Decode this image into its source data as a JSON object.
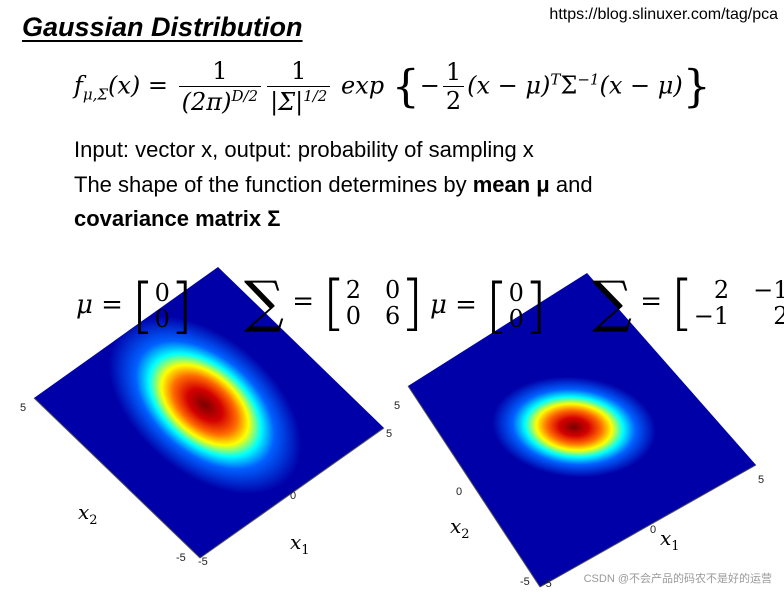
{
  "header": {
    "title": "Gaussian Distribution",
    "url": "https://blog.slinuxer.com/tag/pca"
  },
  "formula": {
    "lhs": "f",
    "lhs_sub": "μ,Σ",
    "lhs_arg": "(x) =",
    "frac1_num": "1",
    "frac1_den": "(2π)",
    "frac1_den_sup": "D/2",
    "frac2_num": "1",
    "frac2_den": "|Σ|",
    "frac2_den_sup": "1/2",
    "exp_word": "exp",
    "left_brace": "{",
    "minus": "−",
    "frac3_num": "1",
    "frac3_den": "2",
    "term1": "(x − μ)",
    "term1_sup": "T",
    "sigma": "Σ",
    "sigma_sup": "−1",
    "term2": "(x − μ)",
    "right_brace": "}"
  },
  "text": {
    "line1": "Input: vector x, output: probability of sampling x",
    "line2_pre": "The shape of the function determines by ",
    "line2_bold": "mean μ",
    "line2_post": " and",
    "line3_bold": "covariance matrix Σ"
  },
  "plots": [
    {
      "mu_label": "μ =",
      "mu": [
        "0",
        "0"
      ],
      "sigma_symbol": "∑",
      "eq": "=",
      "cov": [
        "2",
        "0",
        "0",
        "6"
      ],
      "ticks": [
        "5",
        "5",
        "0",
        "-5",
        "-5"
      ],
      "xlabel_base": "x",
      "xlabel_sub": "1",
      "ylabel_base": "x",
      "ylabel_sub": "2"
    },
    {
      "mu_label": "μ =",
      "mu": [
        "0",
        "0"
      ],
      "sigma_symbol": "∑",
      "eq": "=",
      "cov": [
        "2",
        "−1",
        "−1",
        "2"
      ],
      "ticks": [
        "5",
        "5",
        "0",
        "0",
        "-5",
        "-5"
      ],
      "xlabel_base": "x",
      "xlabel_sub": "1",
      "ylabel_base": "x",
      "ylabel_sub": "2"
    }
  ],
  "colors": {
    "peak": "#8b0000",
    "mid": "#ffff00",
    "low": "#00ffff",
    "background_surface": "#0000a8"
  },
  "watermark": "CSDN @不会产品的码农不是好的运营"
}
